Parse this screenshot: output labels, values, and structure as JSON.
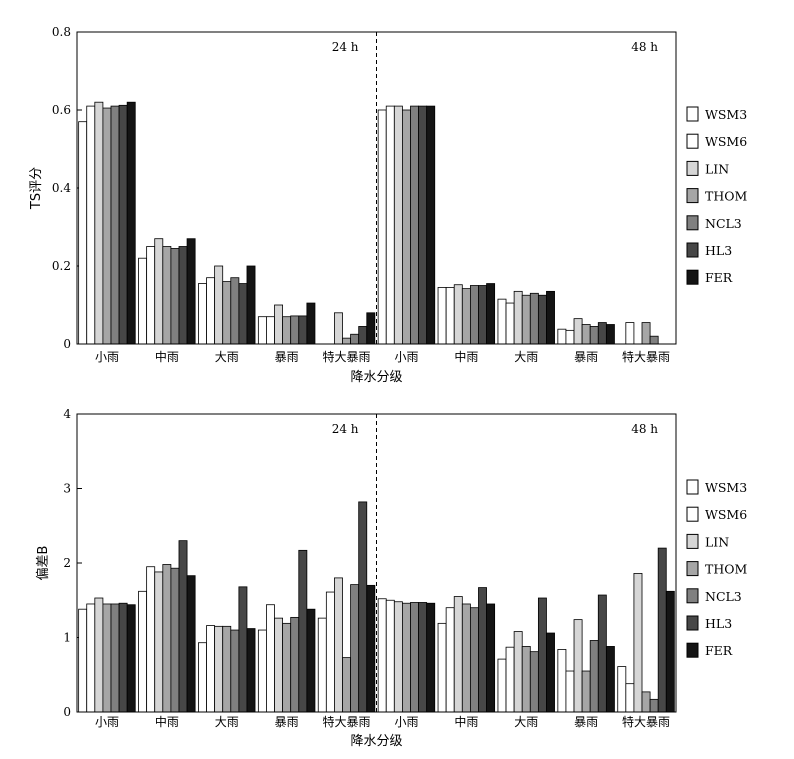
{
  "legend": [
    {
      "name": "WSM3",
      "color": "#ffffff"
    },
    {
      "name": "WSM6",
      "color": "#ffffff"
    },
    {
      "name": "LIN",
      "color": "#d6d6d6"
    },
    {
      "name": "THOM",
      "color": "#a6a6a6"
    },
    {
      "name": "NCL3",
      "color": "#808080"
    },
    {
      "name": "HL3",
      "color": "#474747"
    },
    {
      "name": "FER",
      "color": "#141414"
    }
  ],
  "chart_data": [
    {
      "type": "bar",
      "xlabel": "降水分级",
      "ylabel": "TS评分",
      "ylim": [
        0,
        0.8
      ],
      "yticks": [
        "0",
        "0.2",
        "0.4",
        "0.6",
        "0.8"
      ],
      "panels": [
        {
          "label": "24 h",
          "categories": [
            "小雨",
            "中雨",
            "大雨",
            "暴雨",
            "特大暴雨"
          ],
          "series": [
            {
              "name": "WSM3",
              "values": [
                0.57,
                0.22,
                0.155,
                0.07,
                0
              ]
            },
            {
              "name": "WSM6",
              "values": [
                0.61,
                0.25,
                0.17,
                0.07,
                0
              ]
            },
            {
              "name": "LIN",
              "values": [
                0.62,
                0.27,
                0.2,
                0.1,
                0.08
              ]
            },
            {
              "name": "THOM",
              "values": [
                0.605,
                0.25,
                0.16,
                0.07,
                0.015
              ]
            },
            {
              "name": "NCL3",
              "values": [
                0.61,
                0.245,
                0.17,
                0.072,
                0.025
              ]
            },
            {
              "name": "HL3",
              "values": [
                0.612,
                0.25,
                0.155,
                0.072,
                0.045
              ]
            },
            {
              "name": "FER",
              "values": [
                0.62,
                0.27,
                0.2,
                0.105,
                0.08
              ]
            }
          ]
        },
        {
          "label": "48 h",
          "categories": [
            "小雨",
            "中雨",
            "大雨",
            "暴雨",
            "特大暴雨"
          ],
          "series": [
            {
              "name": "WSM3",
              "values": [
                0.6,
                0.145,
                0.115,
                0.038,
                0
              ]
            },
            {
              "name": "WSM6",
              "values": [
                0.61,
                0.145,
                0.105,
                0.035,
                0.055
              ]
            },
            {
              "name": "LIN",
              "values": [
                0.61,
                0.152,
                0.135,
                0.065,
                0
              ]
            },
            {
              "name": "THOM",
              "values": [
                0.6,
                0.142,
                0.125,
                0.05,
                0.055
              ]
            },
            {
              "name": "NCL3",
              "values": [
                0.61,
                0.15,
                0.13,
                0.045,
                0.02
              ]
            },
            {
              "name": "HL3",
              "values": [
                0.61,
                0.15,
                0.125,
                0.055,
                0
              ]
            },
            {
              "name": "FER",
              "values": [
                0.61,
                0.155,
                0.135,
                0.05,
                0
              ]
            }
          ]
        }
      ]
    },
    {
      "type": "bar",
      "xlabel": "降水分级",
      "ylabel": "偏差B",
      "ylim": [
        0,
        4
      ],
      "yticks": [
        "0",
        "1",
        "2",
        "3",
        "4"
      ],
      "panels": [
        {
          "label": "24 h",
          "categories": [
            "小雨",
            "中雨",
            "大雨",
            "暴雨",
            "特大暴雨"
          ],
          "series": [
            {
              "name": "WSM3",
              "values": [
                1.38,
                1.62,
                0.93,
                1.1,
                1.26
              ]
            },
            {
              "name": "WSM6",
              "values": [
                1.45,
                1.95,
                1.16,
                1.44,
                1.61
              ]
            },
            {
              "name": "LIN",
              "values": [
                1.53,
                1.88,
                1.15,
                1.26,
                1.8
              ]
            },
            {
              "name": "THOM",
              "values": [
                1.45,
                1.98,
                1.15,
                1.19,
                0.73
              ]
            },
            {
              "name": "NCL3",
              "values": [
                1.45,
                1.93,
                1.1,
                1.27,
                1.71
              ]
            },
            {
              "name": "HL3",
              "values": [
                1.46,
                2.3,
                1.68,
                2.17,
                2.82
              ]
            },
            {
              "name": "FER",
              "values": [
                1.44,
                1.83,
                1.12,
                1.38,
                1.7
              ]
            }
          ]
        },
        {
          "label": "48 h",
          "categories": [
            "小雨",
            "中雨",
            "大雨",
            "暴雨",
            "特大暴雨"
          ],
          "series": [
            {
              "name": "WSM3",
              "values": [
                1.52,
                1.19,
                0.71,
                0.84,
                0.61
              ]
            },
            {
              "name": "WSM6",
              "values": [
                1.5,
                1.4,
                0.87,
                0.55,
                0.38
              ]
            },
            {
              "name": "LIN",
              "values": [
                1.48,
                1.55,
                1.08,
                1.24,
                1.86
              ]
            },
            {
              "name": "THOM",
              "values": [
                1.46,
                1.45,
                0.88,
                0.55,
                0.27
              ]
            },
            {
              "name": "NCL3",
              "values": [
                1.47,
                1.4,
                0.81,
                0.96,
                0.17
              ]
            },
            {
              "name": "HL3",
              "values": [
                1.47,
                1.67,
                1.53,
                1.57,
                2.2
              ]
            },
            {
              "name": "FER",
              "values": [
                1.46,
                1.45,
                1.06,
                0.88,
                1.62
              ]
            }
          ]
        }
      ]
    }
  ]
}
